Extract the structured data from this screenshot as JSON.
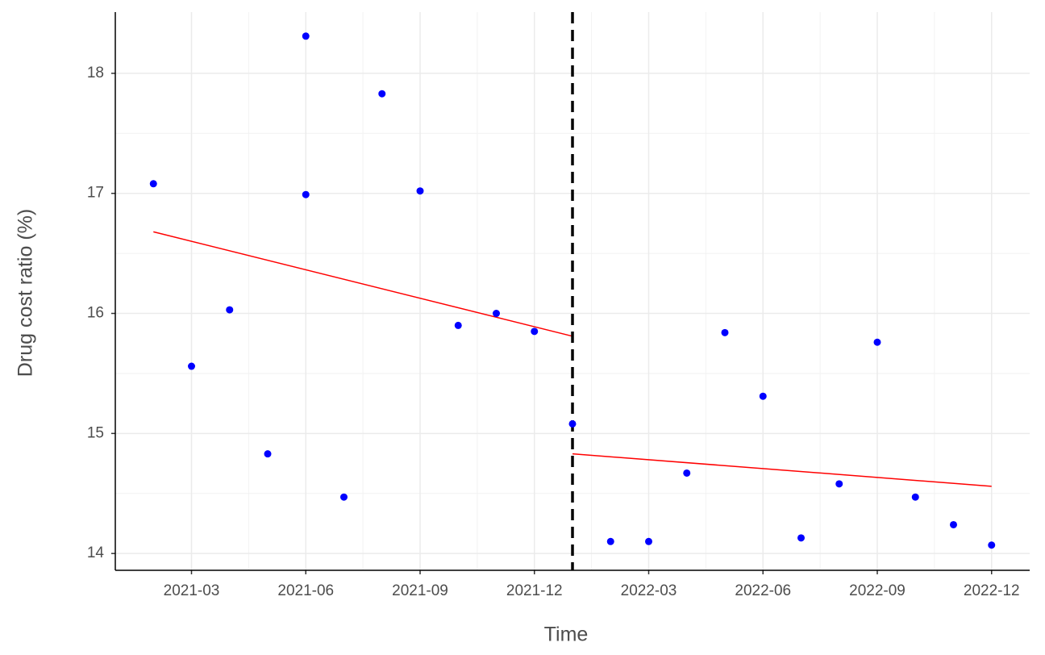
{
  "chart_data": {
    "type": "scatter",
    "x": [
      "2021-02",
      "2021-03",
      "2021-04",
      "2021-05",
      "2021-06",
      "2021-06",
      "2021-07",
      "2021-08",
      "2021-09",
      "2021-10",
      "2021-11",
      "2021-12",
      "2022-01",
      "2022-02",
      "2022-03",
      "2022-04",
      "2022-05",
      "2022-06",
      "2022-07",
      "2022-08",
      "2022-09",
      "2022-10",
      "2022-11",
      "2022-12"
    ],
    "values": [
      17.08,
      15.56,
      16.03,
      14.83,
      18.31,
      16.99,
      14.47,
      17.83,
      17.02,
      15.9,
      16.0,
      15.85,
      15.08,
      14.1,
      14.1,
      14.67,
      15.84,
      15.31,
      14.13,
      14.58,
      15.76,
      14.47,
      14.24,
      14.07
    ],
    "color": "#0000ff",
    "trend_lines": [
      {
        "x": [
          "2021-02",
          "2022-01"
        ],
        "values": [
          16.68,
          15.81
        ],
        "color": "#ff0000"
      },
      {
        "x": [
          "2022-01",
          "2022-12"
        ],
        "values": [
          14.83,
          14.56
        ],
        "color": "#ff0000"
      }
    ],
    "vline": {
      "x": "2022-01",
      "color": "#000000",
      "style": "dashed"
    },
    "xlabel": "Time",
    "ylabel": "Drug cost ratio (%)",
    "xlim": [
      "2021-01",
      "2023-01"
    ],
    "xticks": [
      "2021-03",
      "2021-06",
      "2021-09",
      "2021-12",
      "2022-03",
      "2022-06",
      "2022-09",
      "2022-12"
    ],
    "ylim": [
      13.86,
      18.51
    ],
    "yticks": [
      14,
      15,
      16,
      17,
      18
    ],
    "grid": true
  }
}
